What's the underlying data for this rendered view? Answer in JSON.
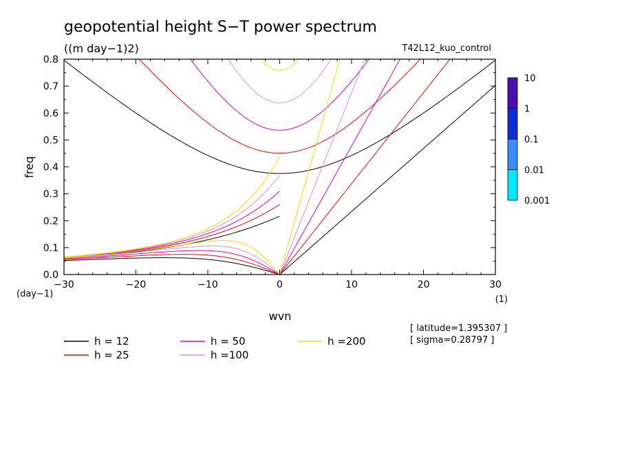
{
  "chart_data": {
    "type": "heatmap",
    "title": "geopotential height S−T power spectrum",
    "subtitle": "((m day−1)2)",
    "run_label": "T42L12_kuo_control",
    "xlabel": "wvn",
    "ylabel": "freq",
    "x_unit": "(1)",
    "y_unit": "(day−1)",
    "xlim": [
      -30,
      30
    ],
    "ylim": [
      0,
      0.8
    ],
    "x_ticks": [
      -30,
      -20,
      -10,
      0,
      10,
      20,
      30
    ],
    "x_tick_labels": [
      "−30",
      "−20",
      "−10",
      "0",
      "10",
      "20",
      "30"
    ],
    "y_ticks": [
      0.0,
      0.1,
      0.2,
      0.3,
      0.4,
      0.5,
      0.6,
      0.7,
      0.8
    ],
    "y_tick_labels": [
      "0.0",
      "0.1",
      "0.2",
      "0.3",
      "0.4",
      "0.5",
      "0.6",
      "0.7",
      "0.8"
    ],
    "colorbar": {
      "levels": [
        0.001,
        0.01,
        0.1,
        1,
        10
      ],
      "labels": [
        "0.001",
        "0.01",
        "0.1",
        "1",
        "10"
      ],
      "colors": [
        "#00e8ff",
        "#3b8cff",
        "#0a2fd6",
        "#4a10b0"
      ],
      "scale": "log"
    },
    "dispersion_curves": [
      {
        "label": "h = 12",
        "h": 12,
        "color": "#000000"
      },
      {
        "label": "h = 25",
        "h": 25,
        "color": "#ff0000"
      },
      {
        "label": "h = 50",
        "h": 50,
        "color": "#e000c0"
      },
      {
        "label": "h =100",
        "h": 100,
        "color": "#d890e8"
      },
      {
        "label": "h =200",
        "h": 200,
        "color": "#f0e000"
      }
    ],
    "info": [
      "[ latitude=1.395307 ]",
      "[ sigma=0.28797 ]"
    ]
  }
}
